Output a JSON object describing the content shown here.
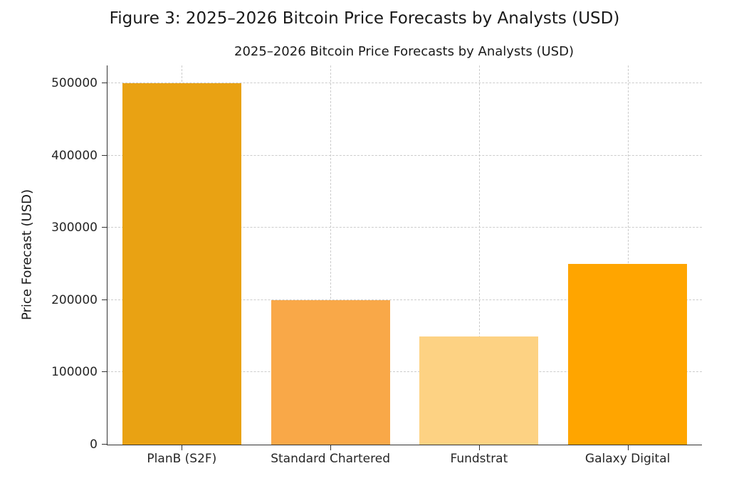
{
  "figure_title": "Figure 3: 2025–2026 Bitcoin Price Forecasts by Analysts (USD)",
  "chart_data": {
    "type": "bar",
    "title": "2025–2026 Bitcoin Price Forecasts by Analysts (USD)",
    "categories": [
      "PlanB (S2F)",
      "Standard Chartered",
      "Fundstrat",
      "Galaxy Digital"
    ],
    "values": [
      500000,
      200000,
      150000,
      250000
    ],
    "bar_colors": [
      "#e9a213",
      "#f9a848",
      "#fdd283",
      "#ffa500"
    ],
    "xlabel": "",
    "ylabel": "Price Forecast (USD)",
    "ylim": [
      0,
      525000
    ],
    "yticks": [
      0,
      100000,
      200000,
      300000,
      400000,
      500000
    ],
    "grid": "dashed-both-axes",
    "legend": "none",
    "bar_width_fraction": 0.8,
    "background_color": "#ffffff",
    "grid_color": "#cccccc",
    "spine_color": "#333333"
  }
}
